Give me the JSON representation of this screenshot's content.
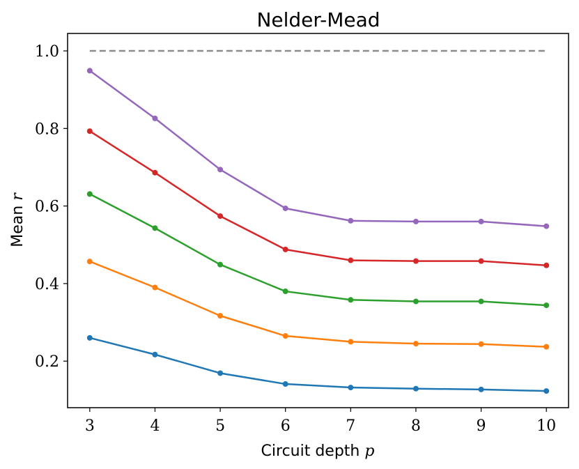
{
  "chart_data": {
    "type": "line",
    "title": "Nelder-Mead",
    "xlabel": "Circuit depth",
    "xlabel_var": "p",
    "ylabel": "Mean",
    "ylabel_var": "r",
    "x": [
      3,
      4,
      5,
      6,
      7,
      8,
      9,
      10
    ],
    "x_ticks": [
      "3",
      "4",
      "5",
      "6",
      "7",
      "8",
      "9",
      "10"
    ],
    "y_ticks": [
      "0.2",
      "0.4",
      "0.6",
      "0.8",
      "1.0"
    ],
    "xlim": [
      2.66,
      10.34
    ],
    "ylim": [
      0.08,
      1.045
    ],
    "grid": false,
    "reference_line": {
      "y": 1.0,
      "x_range": [
        3,
        10
      ],
      "style": "dashed",
      "color": "#8c8c8c"
    },
    "series": [
      {
        "name": "series-1",
        "color": "#1f77b4",
        "values": [
          0.26,
          0.217,
          0.169,
          0.141,
          0.132,
          0.129,
          0.127,
          0.123
        ]
      },
      {
        "name": "series-2",
        "color": "#ff7f0e",
        "values": [
          0.457,
          0.39,
          0.317,
          0.265,
          0.25,
          0.245,
          0.244,
          0.237
        ]
      },
      {
        "name": "series-3",
        "color": "#2ca02c",
        "values": [
          0.631,
          0.543,
          0.449,
          0.38,
          0.358,
          0.354,
          0.354,
          0.344
        ]
      },
      {
        "name": "series-4",
        "color": "#d62728",
        "values": [
          0.793,
          0.686,
          0.574,
          0.488,
          0.46,
          0.458,
          0.458,
          0.447
        ]
      },
      {
        "name": "series-5",
        "color": "#9467bd",
        "values": [
          0.949,
          0.826,
          0.694,
          0.594,
          0.562,
          0.56,
          0.56,
          0.548
        ]
      }
    ]
  }
}
